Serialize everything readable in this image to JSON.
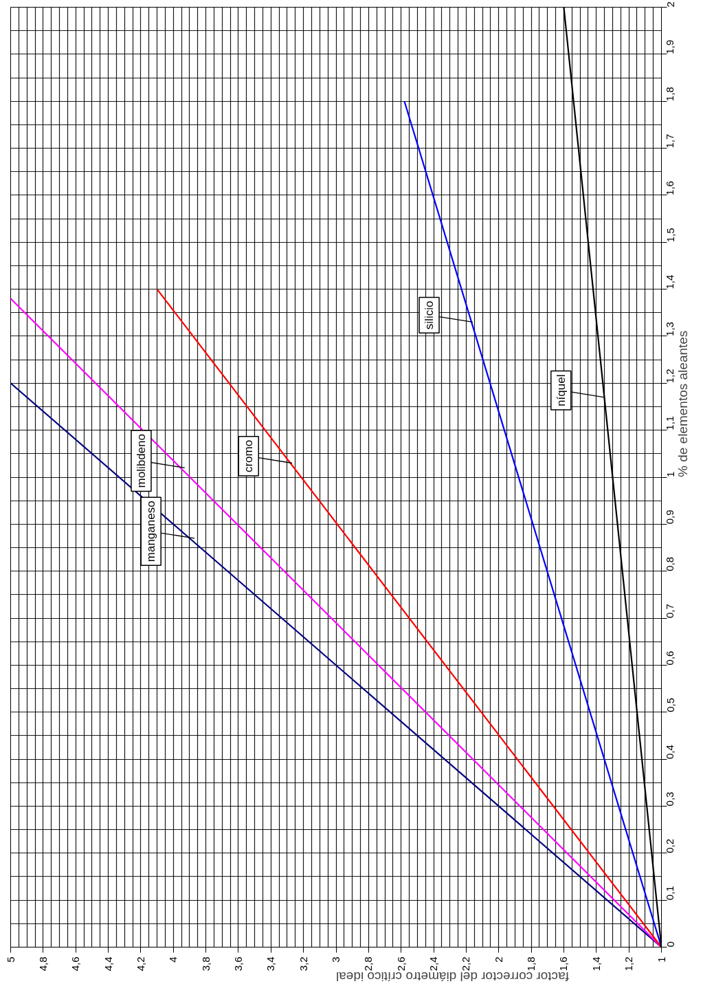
{
  "chart_data": {
    "type": "line",
    "xlabel": "factor corrector del diámetro crítico ideal",
    "ylabel": "% de elementos aleantes",
    "xlim": [
      5,
      1
    ],
    "ylim": [
      0,
      2
    ],
    "xticks": [
      {
        "value": 1,
        "label": "1"
      },
      {
        "value": 1.2,
        "label": "1,2"
      },
      {
        "value": 1.4,
        "label": "1,4"
      },
      {
        "value": 1.6,
        "label": "1,6"
      },
      {
        "value": 1.8,
        "label": "1,8"
      },
      {
        "value": 2,
        "label": "2"
      },
      {
        "value": 2.2,
        "label": "2,2"
      },
      {
        "value": 2.4,
        "label": "2,4"
      },
      {
        "value": 2.6,
        "label": "2,6"
      },
      {
        "value": 2.8,
        "label": "2,8"
      },
      {
        "value": 3,
        "label": "3"
      },
      {
        "value": 3.2,
        "label": "3,2"
      },
      {
        "value": 3.4,
        "label": "3,4"
      },
      {
        "value": 3.6,
        "label": "3,6"
      },
      {
        "value": 3.8,
        "label": "3,8"
      },
      {
        "value": 4,
        "label": "4"
      },
      {
        "value": 4.2,
        "label": "4,2"
      },
      {
        "value": 4.4,
        "label": "4,4"
      },
      {
        "value": 4.6,
        "label": "4,6"
      },
      {
        "value": 4.8,
        "label": "4,8"
      },
      {
        "value": 5,
        "label": "5"
      }
    ],
    "yticks": [
      {
        "value": 0,
        "label": "0"
      },
      {
        "value": 0.1,
        "label": "0,1"
      },
      {
        "value": 0.2,
        "label": "0,2"
      },
      {
        "value": 0.3,
        "label": "0,3"
      },
      {
        "value": 0.4,
        "label": "0,4"
      },
      {
        "value": 0.5,
        "label": "0,5"
      },
      {
        "value": 0.6,
        "label": "0,6"
      },
      {
        "value": 0.7,
        "label": "0,7"
      },
      {
        "value": 0.8,
        "label": "0,8"
      },
      {
        "value": 0.9,
        "label": "0,9"
      },
      {
        "value": 1,
        "label": "1"
      },
      {
        "value": 1.1,
        "label": "1,1"
      },
      {
        "value": 1.2,
        "label": "1,2"
      },
      {
        "value": 1.3,
        "label": "1,3"
      },
      {
        "value": 1.4,
        "label": "1,4"
      },
      {
        "value": 1.5,
        "label": "1,5"
      },
      {
        "value": 1.6,
        "label": "1,6"
      },
      {
        "value": 1.7,
        "label": "1,7"
      },
      {
        "value": 1.8,
        "label": "1,8"
      },
      {
        "value": 1.9,
        "label": "1,9"
      },
      {
        "value": 2,
        "label": "2"
      }
    ],
    "grid": true,
    "marker": "none",
    "line_style": "solid",
    "series": [
      {
        "color": "#000080",
        "x": [
          1,
          5
        ],
        "values": [
          0,
          1.2
        ]
      },
      {
        "color": "#ff00ff",
        "x": [
          1,
          5
        ],
        "values": [
          0,
          1.38
        ]
      },
      {
        "color": "#ff0000",
        "x": [
          1,
          4.1
        ],
        "values": [
          0,
          1.4
        ]
      },
      {
        "color": "#0000ff",
        "x": [
          1,
          2.58
        ],
        "values": [
          0,
          1.8
        ]
      },
      {
        "color": "#000000",
        "x": [
          1,
          1.6
        ],
        "values": [
          0,
          2
        ]
      }
    ],
    "annotations": [
      {
        "text": "manganeso",
        "x": 3.87,
        "y": 0.87
      },
      {
        "text": "molibdeno",
        "x": 3.93,
        "y": 1.02
      },
      {
        "text": "cromo",
        "x": 3.27,
        "y": 1.03
      },
      {
        "text": "silicio",
        "x": 2.16,
        "y": 1.33
      },
      {
        "text": "níquel",
        "x": 1.35,
        "y": 1.17
      }
    ]
  }
}
